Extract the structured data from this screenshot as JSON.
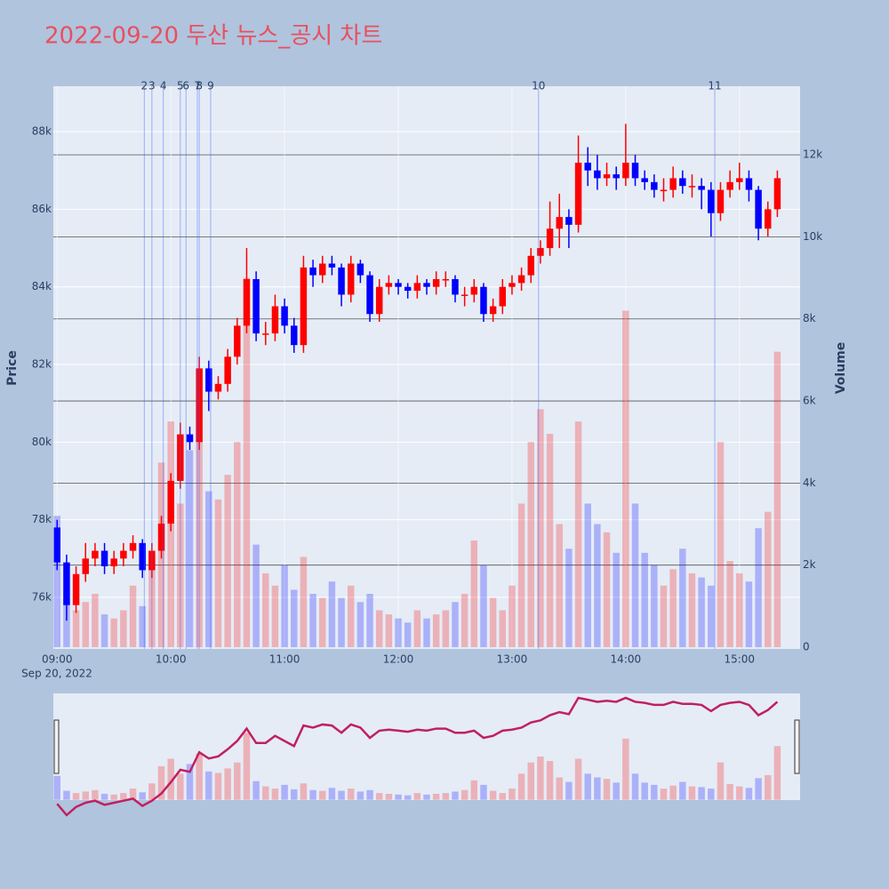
{
  "chart_data": {
    "type": "candlestick",
    "title": "2022-09-20 두산 뉴스_공시 차트",
    "y_label": "Price",
    "y2_label": "Volume",
    "x_date_label": "Sep 20, 2022",
    "increasing_color": "#ff0000",
    "decreasing_color": "#0000ff",
    "title_color": "#e8505f",
    "grid": true,
    "x": [
      "09:00",
      "09:05",
      "09:10",
      "09:15",
      "09:20",
      "09:25",
      "09:30",
      "09:35",
      "09:40",
      "09:45",
      "09:50",
      "09:55",
      "10:00",
      "10:05",
      "10:10",
      "10:15",
      "10:20",
      "10:25",
      "10:30",
      "10:35",
      "10:40",
      "10:45",
      "10:50",
      "10:55",
      "11:00",
      "11:05",
      "11:10",
      "11:15",
      "11:20",
      "11:25",
      "11:30",
      "11:35",
      "11:40",
      "11:45",
      "11:50",
      "11:55",
      "12:00",
      "12:05",
      "12:10",
      "12:15",
      "12:20",
      "12:25",
      "12:30",
      "12:35",
      "12:40",
      "12:45",
      "12:50",
      "12:55",
      "13:00",
      "13:05",
      "13:10",
      "13:15",
      "13:20",
      "13:25",
      "13:30",
      "13:35",
      "13:40",
      "13:45",
      "13:50",
      "13:55",
      "14:00",
      "14:05",
      "14:10",
      "14:15",
      "14:20",
      "14:25",
      "14:30",
      "14:35",
      "14:40",
      "14:45",
      "14:50",
      "14:55",
      "15:00",
      "15:05",
      "15:10",
      "15:15",
      "15:20"
    ],
    "open": [
      77800,
      76900,
      75800,
      76600,
      77000,
      77200,
      76800,
      77000,
      77200,
      77400,
      76700,
      77200,
      77900,
      79000,
      80200,
      80000,
      81900,
      81300,
      81500,
      82200,
      83000,
      84200,
      82800,
      82800,
      83500,
      83000,
      82500,
      84500,
      84300,
      84600,
      84500,
      83800,
      84600,
      84300,
      83300,
      84000,
      84100,
      84000,
      83900,
      84100,
      84000,
      84200,
      84200,
      83800,
      83800,
      84000,
      83300,
      83500,
      84000,
      84100,
      84300,
      84800,
      85000,
      85500,
      85800,
      85600,
      87200,
      87000,
      86800,
      86900,
      86800,
      87200,
      86800,
      86700,
      86500,
      86500,
      86800,
      86600,
      86600,
      86500,
      85900,
      86500,
      86700,
      86800,
      86500,
      85500,
      86000
    ],
    "high": [
      78000,
      77100,
      76800,
      77400,
      77400,
      77400,
      77200,
      77400,
      77600,
      77500,
      77400,
      78100,
      79200,
      80500,
      80400,
      82200,
      82100,
      81700,
      82400,
      83200,
      85000,
      84400,
      83100,
      83800,
      83700,
      83200,
      84800,
      84700,
      84800,
      84800,
      84600,
      84800,
      84700,
      84400,
      84200,
      84300,
      84200,
      84100,
      84300,
      84200,
      84400,
      84400,
      84300,
      84000,
      84200,
      84100,
      83700,
      84200,
      84300,
      84500,
      85000,
      85200,
      86200,
      86400,
      86000,
      87900,
      87600,
      87400,
      87200,
      87100,
      88200,
      87400,
      87000,
      86900,
      86800,
      87100,
      87000,
      86900,
      86800,
      86700,
      86700,
      87000,
      87200,
      87000,
      86600,
      86200,
      87000
    ],
    "low": [
      76700,
      75400,
      75600,
      76400,
      76800,
      76600,
      76600,
      76800,
      77000,
      76500,
      76500,
      77000,
      77700,
      78800,
      79800,
      79800,
      80800,
      81100,
      81300,
      82000,
      82800,
      82600,
      82500,
      82600,
      82800,
      82300,
      82300,
      84000,
      84100,
      84300,
      83500,
      83600,
      84100,
      83100,
      83100,
      83800,
      83800,
      83700,
      83700,
      83800,
      83800,
      84000,
      83600,
      83500,
      83600,
      83100,
      83100,
      83300,
      83800,
      83900,
      84100,
      84600,
      84800,
      85000,
      85000,
      85400,
      86600,
      86500,
      86600,
      86500,
      86600,
      86600,
      86500,
      86300,
      86200,
      86300,
      86400,
      86300,
      86000,
      85300,
      85700,
      86300,
      86500,
      86200,
      85200,
      85300,
      85800
    ],
    "close": [
      76900,
      75800,
      76600,
      77000,
      77200,
      76800,
      77000,
      77200,
      77400,
      76700,
      77200,
      77900,
      79000,
      80200,
      80000,
      81900,
      81300,
      81500,
      82200,
      83000,
      84200,
      82800,
      82800,
      83500,
      83000,
      82500,
      84500,
      84300,
      84600,
      84500,
      83800,
      84600,
      84300,
      83300,
      84000,
      84100,
      84000,
      83900,
      84100,
      84000,
      84200,
      84200,
      83800,
      83800,
      84000,
      83300,
      83500,
      84000,
      84100,
      84300,
      84800,
      85000,
      85500,
      85800,
      85600,
      87200,
      87000,
      86800,
      86900,
      86800,
      87200,
      86800,
      86700,
      86500,
      86500,
      86800,
      86600,
      86600,
      86500,
      85900,
      86500,
      86700,
      86800,
      86500,
      85500,
      86000,
      86800
    ],
    "volume": [
      3200,
      1200,
      900,
      1100,
      1300,
      800,
      700,
      900,
      1500,
      1000,
      2200,
      4500,
      5500,
      3500,
      4800,
      6200,
      3800,
      3600,
      4200,
      5000,
      9000,
      2500,
      1800,
      1500,
      2000,
      1400,
      2200,
      1300,
      1200,
      1600,
      1200,
      1500,
      1100,
      1300,
      900,
      800,
      700,
      600,
      900,
      700,
      800,
      900,
      1100,
      1300,
      2600,
      2000,
      1200,
      900,
      1500,
      3500,
      5000,
      5800,
      5200,
      3000,
      2400,
      5500,
      3500,
      3000,
      2800,
      2300,
      8200,
      3500,
      2300,
      2000,
      1500,
      1900,
      2400,
      1800,
      1700,
      1500,
      5000,
      2100,
      1800,
      1600,
      2900,
      3300,
      7200
    ],
    "xlim": [
      "08:58",
      "15:32"
    ],
    "xticks": [
      "09:00",
      "10:00",
      "11:00",
      "12:00",
      "13:00",
      "14:00",
      "15:00"
    ],
    "ylim": [
      74670,
      89170
    ],
    "yticks": [
      {
        "value": 76000,
        "label": "76k"
      },
      {
        "value": 78000,
        "label": "78k"
      },
      {
        "value": 80000,
        "label": "80k"
      },
      {
        "value": 82000,
        "label": "82k"
      },
      {
        "value": 84000,
        "label": "84k"
      },
      {
        "value": 86000,
        "label": "86k"
      },
      {
        "value": 88000,
        "label": "88k"
      }
    ],
    "y2lim": [
      -43,
      13670
    ],
    "y2ticks": [
      0,
      {
        "value": 2000,
        "label": "2k"
      },
      {
        "value": 4000,
        "label": "4k"
      },
      {
        "value": 6000,
        "label": "6k"
      },
      {
        "value": 8000,
        "label": "8k"
      },
      {
        "value": 10000,
        "label": "10k"
      },
      {
        "value": 12000,
        "label": "12k"
      }
    ],
    "events": [
      {
        "time": "09:46",
        "label": "2"
      },
      {
        "time": "09:50",
        "label": "3"
      },
      {
        "time": "09:56",
        "label": "4"
      },
      {
        "time": "10:05",
        "label": "5"
      },
      {
        "time": "10:08",
        "label": "6"
      },
      {
        "time": "10:14",
        "label": "7"
      },
      {
        "time": "10:15",
        "label": "8"
      },
      {
        "time": "10:21",
        "label": "9"
      },
      {
        "time": "13:14",
        "label": "10"
      },
      {
        "time": "14:47",
        "label": "11"
      }
    ]
  }
}
